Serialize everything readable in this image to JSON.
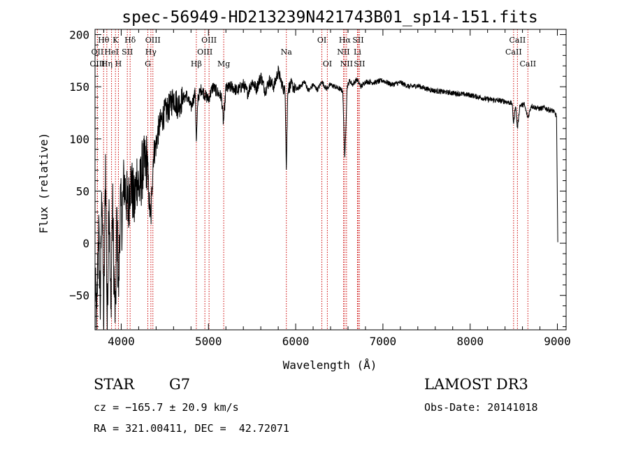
{
  "chart_data": {
    "type": "line",
    "title": "spec-56949-HD213239N421743B01_sp14-151.fits",
    "xlabel": "Wavelength (Å)",
    "ylabel": "Flux (relative)",
    "xlim": [
      3700,
      9100
    ],
    "ylim": [
      -83,
      205
    ],
    "xticks": [
      4000,
      5000,
      6000,
      7000,
      8000,
      9000
    ],
    "yticks": [
      -50,
      0,
      50,
      100,
      150,
      200
    ],
    "grid": false,
    "series": [
      {
        "x": [
          3700,
          3720,
          3740,
          3760,
          3780,
          3800,
          3820,
          3840,
          3860,
          3880,
          3900,
          3920,
          3934,
          3950,
          3968,
          3990,
          4010,
          4030,
          4060,
          4080,
          4102,
          4120,
          4150,
          4180,
          4210,
          4240,
          4270,
          4300,
          4320,
          4340,
          4355,
          4370,
          4400,
          4430,
          4460,
          4500,
          4550,
          4600,
          4650,
          4700,
          4750,
          4800,
          4850,
          4861,
          4880,
          4920,
          4960,
          5000,
          5050,
          5100,
          5150,
          5172,
          5200,
          5270,
          5330,
          5400,
          5450,
          5500,
          5550,
          5600,
          5650,
          5700,
          5750,
          5800,
          5850,
          5880,
          5893,
          5910,
          5950,
          6000,
          6050,
          6100,
          6150,
          6200,
          6250,
          6300,
          6350,
          6400,
          6450,
          6500,
          6540,
          6563,
          6590,
          6620,
          6650,
          6700,
          6750,
          6800,
          6900,
          7000,
          7100,
          7200,
          7300,
          7400,
          7500,
          7600,
          7700,
          7800,
          7900,
          8000,
          8100,
          8200,
          8300,
          8400,
          8480,
          8498,
          8520,
          8542,
          8570,
          8620,
          8662,
          8700,
          8750,
          8800,
          8850,
          8900,
          8950,
          8990,
          9000,
          9005
        ],
        "y": [
          -40,
          -75,
          20,
          -60,
          60,
          -80,
          80,
          -82,
          55,
          -70,
          40,
          -40,
          -75,
          30,
          -50,
          40,
          20,
          60,
          45,
          30,
          60,
          55,
          35,
          65,
          50,
          70,
          75,
          80,
          40,
          20,
          60,
          85,
          95,
          110,
          118,
          125,
          130,
          140,
          132,
          138,
          142,
          130,
          145,
          95,
          140,
          148,
          142,
          138,
          150,
          145,
          140,
          115,
          148,
          150,
          146,
          152,
          144,
          155,
          148,
          160,
          146,
          156,
          150,
          165,
          150,
          145,
          70,
          148,
          152,
          147,
          150,
          155,
          146,
          152,
          147,
          155,
          148,
          152,
          150,
          148,
          146,
          80,
          150,
          156,
          152,
          157,
          150,
          155,
          154,
          156,
          152,
          154,
          150,
          151,
          148,
          146,
          145,
          144,
          143,
          142,
          140,
          138,
          137,
          136,
          134,
          115,
          133,
          110,
          132,
          133,
          120,
          132,
          130,
          129,
          130,
          128,
          127,
          122,
          40,
          1
        ]
      }
    ],
    "spectral_lines": [
      {
        "name": "Hθ",
        "wave": 3798,
        "row": 1
      },
      {
        "name": "OII",
        "wave": 3727,
        "row": 2
      },
      {
        "name": "OIII",
        "wave": 3727,
        "row": 3
      },
      {
        "name": "K",
        "wave": 3934,
        "row": 1
      },
      {
        "name": "HeI",
        "wave": 3889,
        "row": 2
      },
      {
        "name": "Hη",
        "wave": 3835,
        "row": 3
      },
      {
        "name": "Hδ",
        "wave": 4102,
        "row": 1
      },
      {
        "name": "SII",
        "wave": 4070,
        "row": 2
      },
      {
        "name": "H",
        "wave": 3968,
        "row": 3
      },
      {
        "name": "OIII",
        "wave": 4363,
        "row": 1
      },
      {
        "name": "Hγ",
        "wave": 4340,
        "row": 2
      },
      {
        "name": "G",
        "wave": 4305,
        "row": 3
      },
      {
        "name": "OIII",
        "wave": 5007,
        "row": 1
      },
      {
        "name": "OIII",
        "wave": 4959,
        "row": 2
      },
      {
        "name": "Hβ",
        "wave": 4861,
        "row": 3
      },
      {
        "name": "Mg",
        "wave": 5175,
        "row": 3
      },
      {
        "name": "Na",
        "wave": 5893,
        "row": 2
      },
      {
        "name": "OI",
        "wave": 6300,
        "row": 1
      },
      {
        "name": "OI",
        "wave": 6363,
        "row": 3
      },
      {
        "name": "Hα",
        "wave": 6563,
        "row": 1
      },
      {
        "name": "SII",
        "wave": 6716,
        "row": 1
      },
      {
        "name": "NII",
        "wave": 6548,
        "row": 2
      },
      {
        "name": "Li",
        "wave": 6708,
        "row": 2
      },
      {
        "name": "NII",
        "wave": 6583,
        "row": 3
      },
      {
        "name": "SII",
        "wave": 6731,
        "row": 3
      },
      {
        "name": "CaII",
        "wave": 8542,
        "row": 1
      },
      {
        "name": "CaII",
        "wave": 8498,
        "row": 2
      },
      {
        "name": "CaII",
        "wave": 8662,
        "row": 3
      }
    ],
    "line_marker_color": "#cc0000",
    "spectrum_color": "#000000"
  },
  "info": {
    "object_class": "STAR",
    "subclass": "G7",
    "survey": "LAMOST DR3",
    "cz": "cz = −165.7 ± 20.9 km/s",
    "obs_date": "Obs-Date: 20141018",
    "coords": "RA = 321.00411, DEC =  42.72071"
  }
}
